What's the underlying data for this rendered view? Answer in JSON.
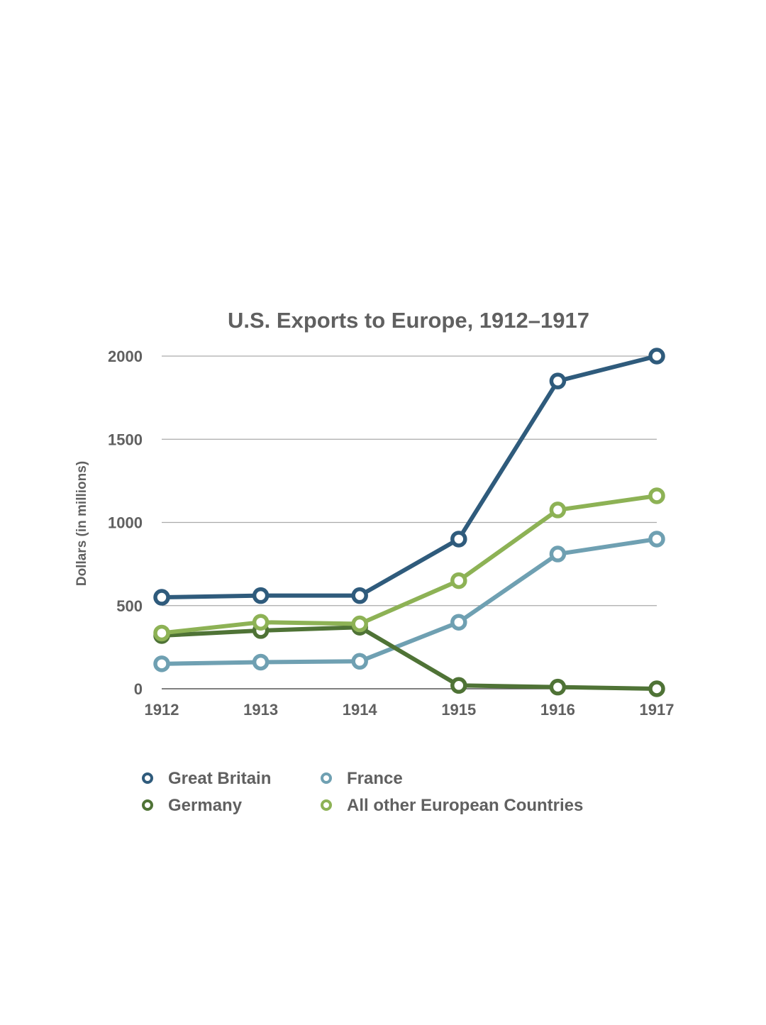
{
  "chart_data": {
    "type": "line",
    "title": "U.S. Exports to Europe, 1912–1917",
    "xlabel": "",
    "ylabel": "Dollars (in millions)",
    "x": [
      "1912",
      "1913",
      "1914",
      "1915",
      "1916",
      "1917"
    ],
    "yticks": [
      "0",
      "500",
      "1000",
      "1500",
      "2000"
    ],
    "ylim": [
      0,
      2000
    ],
    "grid": true,
    "legend_position": "bottom",
    "series": [
      {
        "name": "Great Britain",
        "color": "#2f5b7c",
        "values": [
          550,
          560,
          560,
          900,
          1850,
          2000
        ]
      },
      {
        "name": "France",
        "color": "#6fa0b2",
        "values": [
          150,
          160,
          165,
          400,
          810,
          900
        ]
      },
      {
        "name": "Germany",
        "color": "#4f7336",
        "values": [
          320,
          350,
          370,
          20,
          10,
          0
        ]
      },
      {
        "name": "All other European Countries",
        "color": "#8db255",
        "values": [
          335,
          400,
          390,
          650,
          1075,
          1160
        ]
      }
    ]
  }
}
